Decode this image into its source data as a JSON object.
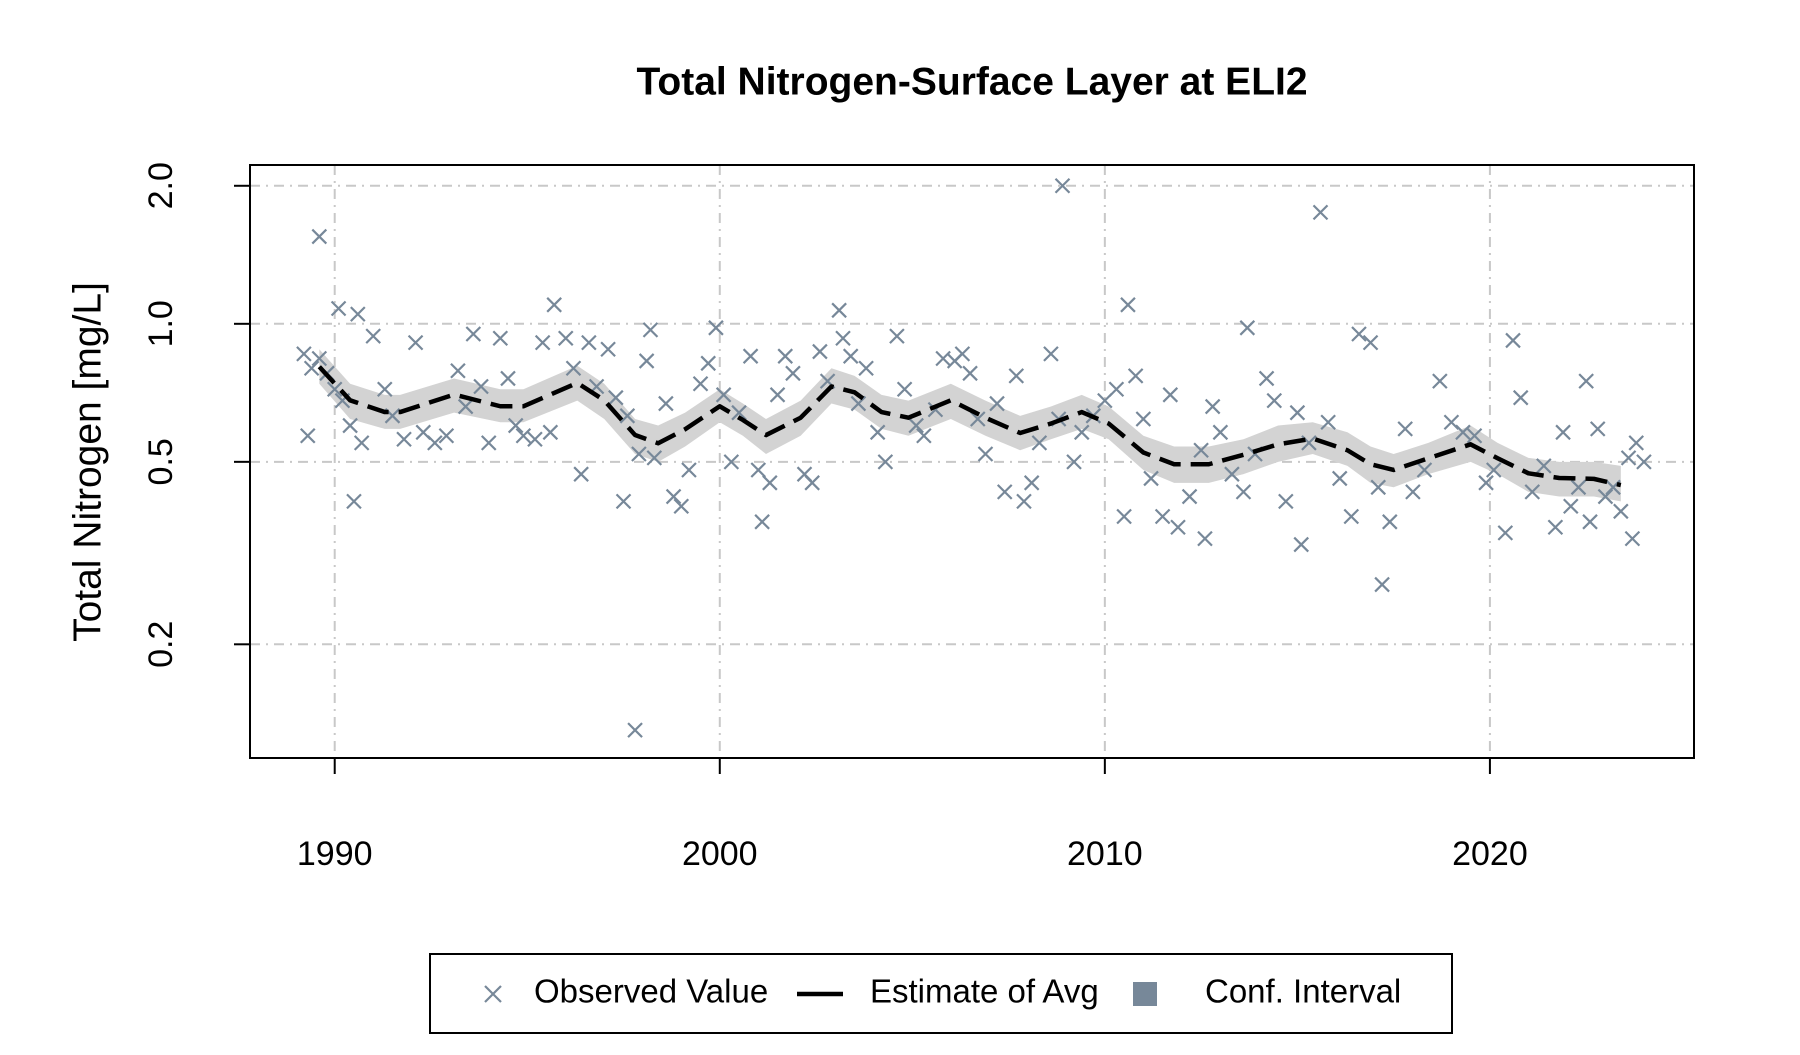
{
  "chart_data": {
    "type": "scatter",
    "title": "Total Nitrogen-Surface Layer at ELI2",
    "y_label": "Total Nitrogen [mg/L]",
    "xlim": [
      1987.8,
      2025.3
    ],
    "xticks": [
      1990,
      2000,
      2010,
      2020
    ],
    "ylim": [
      0.113,
      2.22
    ],
    "yticks": [
      0.2,
      0.5,
      {
        "value": 1,
        "label": "1.0"
      },
      {
        "value": 2,
        "label": "2.0"
      }
    ],
    "log_y": true,
    "grid": true,
    "legend": "bottom",
    "series": [
      {
        "name": "Observed Value",
        "type": "scatter",
        "color": "#778899",
        "x": [
          1989.2,
          1989.3,
          1989.4,
          1989.6,
          1989.6,
          1989.8,
          1990.0,
          1990.1,
          1990.2,
          1990.4,
          1990.5,
          1990.6,
          1990.7,
          1991.0,
          1991.3,
          1991.5,
          1991.8,
          1992.1,
          1992.3,
          1992.6,
          1992.9,
          1993.2,
          1993.4,
          1993.6,
          1993.8,
          1994.0,
          1994.3,
          1994.5,
          1994.7,
          1994.9,
          1995.2,
          1995.4,
          1995.6,
          1995.7,
          1996.0,
          1996.2,
          1996.4,
          1996.6,
          1996.8,
          1997.1,
          1997.3,
          1997.5,
          1997.6,
          1997.8,
          1997.9,
          1998.1,
          1998.2,
          1998.3,
          1998.6,
          1998.8,
          1999.0,
          1999.2,
          1999.5,
          1999.7,
          1999.9,
          2000.1,
          2000.3,
          2000.5,
          2000.8,
          2001.0,
          2001.1,
          2001.3,
          2001.5,
          2001.7,
          2001.9,
          2002.2,
          2002.4,
          2002.6,
          2002.8,
          2003.1,
          2003.2,
          2003.4,
          2003.6,
          2003.8,
          2004.1,
          2004.3,
          2004.6,
          2004.8,
          2005.1,
          2005.3,
          2005.6,
          2005.8,
          2006.1,
          2006.3,
          2006.5,
          2006.7,
          2006.9,
          2007.2,
          2007.4,
          2007.7,
          2007.9,
          2008.1,
          2008.3,
          2008.6,
          2008.8,
          2008.9,
          2009.2,
          2009.4,
          2009.7,
          2010.0,
          2010.3,
          2010.5,
          2010.6,
          2010.8,
          2011.0,
          2011.2,
          2011.5,
          2011.7,
          2011.9,
          2012.2,
          2012.5,
          2012.6,
          2012.8,
          2013.0,
          2013.3,
          2013.6,
          2013.7,
          2013.9,
          2014.2,
          2014.4,
          2014.7,
          2015.0,
          2015.1,
          2015.3,
          2015.6,
          2015.8,
          2016.1,
          2016.4,
          2016.6,
          2016.9,
          2017.1,
          2017.2,
          2017.4,
          2017.8,
          2018.0,
          2018.3,
          2018.7,
          2019.0,
          2019.3,
          2019.6,
          2019.9,
          2020.1,
          2020.4,
          2020.6,
          2020.8,
          2021.1,
          2021.4,
          2021.7,
          2021.9,
          2022.1,
          2022.3,
          2022.5,
          2022.6,
          2022.8,
          2023.0,
          2023.2,
          2023.4,
          2023.6,
          2023.7,
          2023.8,
          2024.0
        ],
        "values": [
          0.86,
          0.57,
          0.8,
          1.55,
          0.84,
          0.78,
          0.72,
          1.08,
          0.68,
          0.6,
          0.41,
          1.05,
          0.55,
          0.94,
          0.72,
          0.63,
          0.56,
          0.91,
          0.58,
          0.55,
          0.57,
          0.79,
          0.66,
          0.95,
          0.73,
          0.55,
          0.93,
          0.76,
          0.6,
          0.57,
          0.56,
          0.91,
          0.58,
          1.1,
          0.93,
          0.8,
          0.47,
          0.91,
          0.73,
          0.88,
          0.69,
          0.41,
          0.63,
          0.13,
          0.52,
          0.83,
          0.97,
          0.51,
          0.67,
          0.42,
          0.4,
          0.48,
          0.74,
          0.82,
          0.98,
          0.7,
          0.5,
          0.64,
          0.85,
          0.48,
          0.37,
          0.45,
          0.7,
          0.85,
          0.78,
          0.47,
          0.45,
          0.87,
          0.75,
          1.07,
          0.93,
          0.85,
          0.67,
          0.8,
          0.58,
          0.5,
          0.94,
          0.72,
          0.6,
          0.57,
          0.65,
          0.84,
          0.83,
          0.86,
          0.78,
          0.62,
          0.52,
          0.67,
          0.43,
          0.77,
          0.41,
          0.45,
          0.55,
          0.86,
          0.62,
          2.0,
          0.5,
          0.58,
          0.63,
          0.68,
          0.72,
          0.38,
          1.1,
          0.77,
          0.62,
          0.46,
          0.38,
          0.7,
          0.36,
          0.42,
          0.53,
          0.34,
          0.66,
          0.58,
          0.47,
          0.43,
          0.98,
          0.52,
          0.76,
          0.68,
          0.41,
          0.64,
          0.33,
          0.55,
          1.75,
          0.61,
          0.46,
          0.38,
          0.95,
          0.91,
          0.44,
          0.27,
          0.37,
          0.59,
          0.43,
          0.48,
          0.75,
          0.61,
          0.58,
          0.57,
          0.45,
          0.48,
          0.35,
          0.92,
          0.69,
          0.43,
          0.49,
          0.36,
          0.58,
          0.4,
          0.44,
          0.75,
          0.37,
          0.59,
          0.42,
          0.44,
          0.39,
          0.51,
          0.34,
          0.55,
          0.5
        ]
      },
      {
        "name": "Estimate of Avg",
        "type": "line",
        "color": "#000000",
        "x": [
          1989.6,
          1990.4,
          1991.3,
          1991.7,
          1993.1,
          1994.3,
          1994.9,
          1996.3,
          1997.0,
          1997.8,
          1998.4,
          1999.1,
          2000.0,
          2000.6,
          2001.2,
          2002.1,
          2002.9,
          2003.5,
          2004.2,
          2004.9,
          2006.0,
          2006.9,
          2007.8,
          2008.6,
          2009.4,
          2010.1,
          2011.0,
          2011.8,
          2012.7,
          2013.6,
          2014.5,
          2015.4,
          2016.3,
          2016.9,
          2017.5,
          2018.4,
          2019.5,
          2020.2,
          2021.0,
          2021.8,
          2022.7,
          2023.4
        ],
        "values": [
          0.806,
          0.681,
          0.642,
          0.642,
          0.701,
          0.661,
          0.661,
          0.743,
          0.681,
          0.572,
          0.549,
          0.589,
          0.661,
          0.617,
          0.572,
          0.624,
          0.73,
          0.709,
          0.642,
          0.624,
          0.681,
          0.624,
          0.578,
          0.606,
          0.642,
          0.606,
          0.524,
          0.494,
          0.494,
          0.518,
          0.546,
          0.562,
          0.53,
          0.494,
          0.48,
          0.509,
          0.546,
          0.509,
          0.472,
          0.461,
          0.459,
          0.445
        ]
      },
      {
        "name": "Conf. Interval",
        "type": "band",
        "color": "#d3d3d3",
        "legend_color": "#778899",
        "x": [
          1989.6,
          1990.4,
          1991.3,
          1991.7,
          1993.1,
          1994.3,
          1994.9,
          1996.3,
          1997.0,
          1997.8,
          1998.4,
          1999.1,
          2000.0,
          2000.6,
          2001.2,
          2002.1,
          2002.9,
          2003.5,
          2004.2,
          2004.9,
          2006.0,
          2006.9,
          2007.8,
          2008.6,
          2009.4,
          2010.1,
          2011.0,
          2011.8,
          2012.7,
          2013.6,
          2014.5,
          2015.4,
          2016.3,
          2016.9,
          2017.5,
          2018.4,
          2019.5,
          2020.2,
          2021.0,
          2021.8,
          2022.7,
          2023.4
        ],
        "upper": [
          0.88,
          0.74,
          0.7,
          0.7,
          0.76,
          0.72,
          0.72,
          0.81,
          0.74,
          0.62,
          0.6,
          0.64,
          0.72,
          0.67,
          0.62,
          0.68,
          0.8,
          0.77,
          0.7,
          0.68,
          0.74,
          0.68,
          0.63,
          0.66,
          0.7,
          0.66,
          0.57,
          0.54,
          0.54,
          0.56,
          0.6,
          0.61,
          0.58,
          0.54,
          0.52,
          0.55,
          0.6,
          0.55,
          0.51,
          0.5,
          0.5,
          0.49
        ],
        "lower": [
          0.74,
          0.62,
          0.59,
          0.59,
          0.64,
          0.61,
          0.61,
          0.68,
          0.62,
          0.52,
          0.5,
          0.54,
          0.61,
          0.57,
          0.52,
          0.57,
          0.67,
          0.65,
          0.59,
          0.57,
          0.62,
          0.57,
          0.53,
          0.56,
          0.59,
          0.56,
          0.48,
          0.45,
          0.45,
          0.47,
          0.5,
          0.52,
          0.49,
          0.45,
          0.44,
          0.47,
          0.5,
          0.47,
          0.43,
          0.42,
          0.42,
          0.41
        ]
      }
    ]
  }
}
